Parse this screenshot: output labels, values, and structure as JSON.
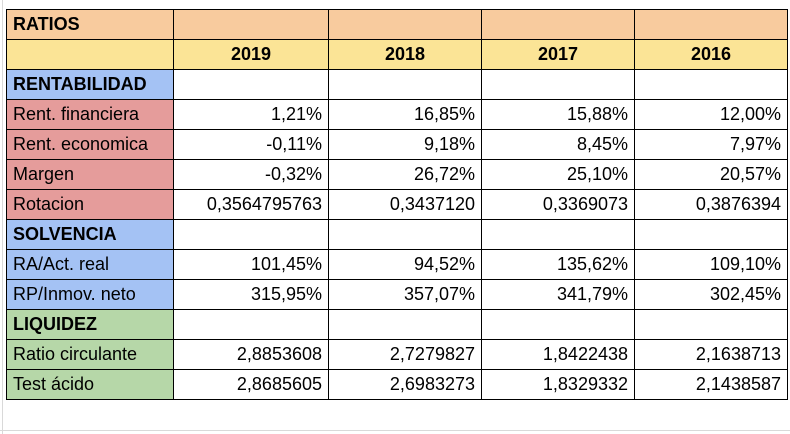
{
  "header": {
    "title": "RATIOS"
  },
  "years": [
    "2019",
    "2018",
    "2017",
    "2016"
  ],
  "sections": [
    {
      "title": "RENTABILIDAD",
      "color": "#e59c9b",
      "rows": [
        {
          "label": "Rent. financiera",
          "values": [
            "1,21%",
            "16,85%",
            "15,88%",
            "12,00%"
          ]
        },
        {
          "label": "Rent. economica",
          "values": [
            "-0,11%",
            "9,18%",
            "8,45%",
            "7,97%"
          ]
        },
        {
          "label": "Margen",
          "values": [
            "-0,32%",
            "26,72%",
            "25,10%",
            "20,57%"
          ]
        },
        {
          "label": "Rotacion",
          "values": [
            "0,3564795763",
            "0,3437120",
            "0,3369073",
            "0,3876394"
          ]
        }
      ]
    },
    {
      "title": "SOLVENCIA",
      "color": "#a4c2f4",
      "rows": [
        {
          "label": "RA/Act. real",
          "values": [
            "101,45%",
            "94,52%",
            "135,62%",
            "109,10%"
          ]
        },
        {
          "label": "RP/Inmov. neto",
          "values": [
            "315,95%",
            "357,07%",
            "341,79%",
            "302,45%"
          ]
        }
      ]
    },
    {
      "title": "LIQUIDEZ",
      "color": "#b6d7a8",
      "rows": [
        {
          "label": "Ratio circulante",
          "values": [
            "2,8853608",
            "2,7279827",
            "1,8422438",
            "2,1638713"
          ]
        },
        {
          "label": "Test ácido",
          "values": [
            "2,8685605",
            "2,6983273",
            "1,8329332",
            "2,1438587"
          ]
        }
      ]
    }
  ],
  "colors": {
    "header_bg": "#f8cb9e",
    "year_bg": "#fbe496",
    "title_text": "#d94a38",
    "section_text": "#4a86e8"
  }
}
